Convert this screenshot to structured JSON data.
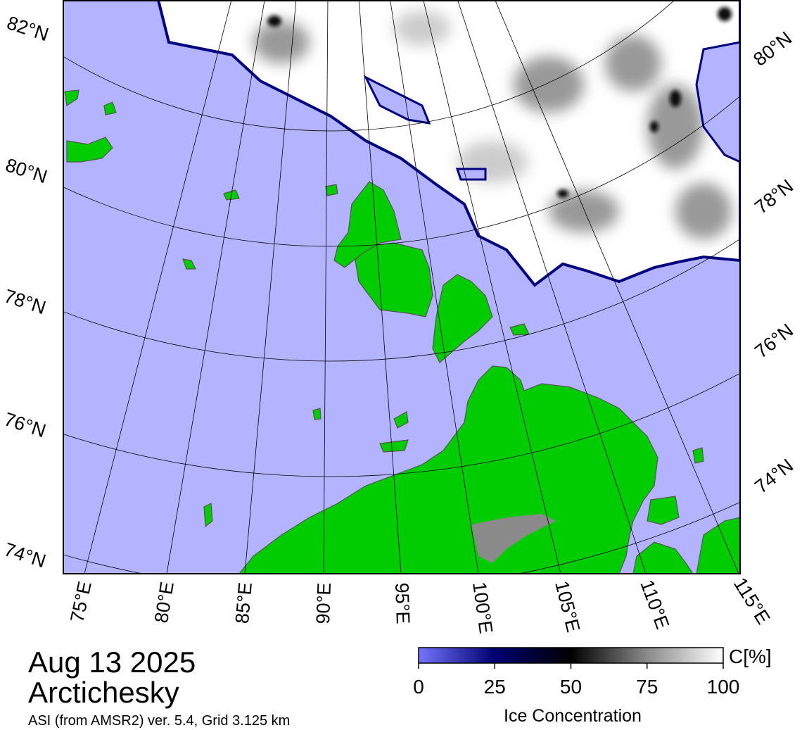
{
  "title": {
    "date": "Aug 13 2025",
    "region": "Arctichesky"
  },
  "source": "ASI (from AMSR2) ver. 5.4,  Grid 3.125 km",
  "map": {
    "lat_labels_left": [
      "82°N",
      "80°N",
      "78°N",
      "76°N",
      "74°N"
    ],
    "lat_labels_right": [
      "80°N",
      "78°N",
      "76°N",
      "74°N"
    ],
    "lon_labels": [
      "75°E",
      "80°E",
      "85°E",
      "90°E",
      "95°E",
      "100°E",
      "105°E",
      "110°E",
      "115°E"
    ]
  },
  "colorbar": {
    "label": "Ice Concentration",
    "unit": "C[%]",
    "range": [
      0,
      100
    ],
    "ticks": [
      0,
      25,
      50,
      75,
      100
    ]
  }
}
